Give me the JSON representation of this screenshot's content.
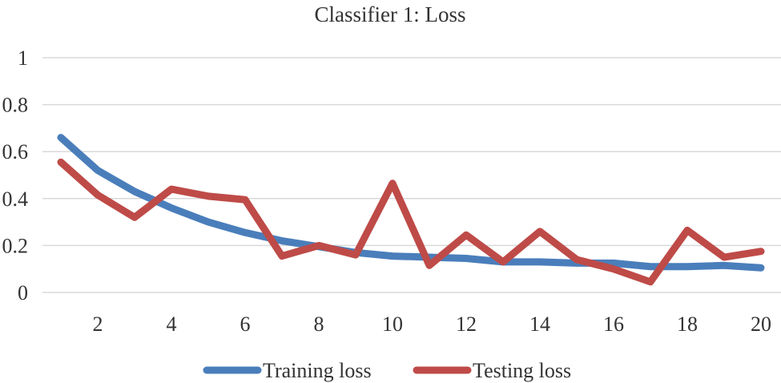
{
  "chart_data": {
    "type": "line",
    "title": "Classifier 1: Loss",
    "xlabel": "",
    "ylabel": "",
    "x": [
      1,
      2,
      3,
      4,
      5,
      6,
      7,
      8,
      9,
      10,
      11,
      12,
      13,
      14,
      15,
      16,
      17,
      18,
      19,
      20
    ],
    "xticks": [
      2,
      4,
      6,
      8,
      10,
      12,
      14,
      16,
      18,
      20
    ],
    "xtick_labels": [
      "2",
      "4",
      "6",
      "8",
      "10",
      "12",
      "14",
      "16",
      "18",
      "20"
    ],
    "ylim": [
      0,
      1
    ],
    "yticks": [
      0,
      0.2,
      0.4,
      0.6,
      0.8,
      1
    ],
    "ytick_labels": [
      "0",
      "0.2",
      "0.4",
      "0.6",
      "0.8",
      "1"
    ],
    "grid": true,
    "legend_position": "bottom",
    "series": [
      {
        "name": "Training loss",
        "color": "#4a7ebb",
        "values": [
          0.66,
          0.52,
          0.43,
          0.36,
          0.3,
          0.255,
          0.22,
          0.195,
          0.17,
          0.155,
          0.15,
          0.145,
          0.13,
          0.13,
          0.125,
          0.125,
          0.11,
          0.11,
          0.115,
          0.105
        ]
      },
      {
        "name": "Testing loss",
        "color": "#be4b48",
        "values": [
          0.555,
          0.415,
          0.32,
          0.44,
          0.41,
          0.395,
          0.155,
          0.2,
          0.16,
          0.465,
          0.115,
          0.245,
          0.13,
          0.26,
          0.14,
          0.1,
          0.045,
          0.265,
          0.15,
          0.175
        ]
      }
    ]
  }
}
